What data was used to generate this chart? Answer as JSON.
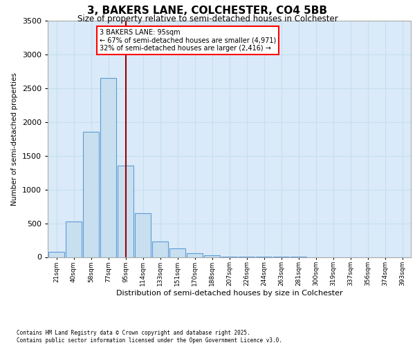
{
  "title": "3, BAKERS LANE, COLCHESTER, CO4 5BB",
  "subtitle": "Size of property relative to semi-detached houses in Colchester",
  "xlabel": "Distribution of semi-detached houses by size in Colchester",
  "ylabel": "Number of semi-detached properties",
  "bar_labels": [
    "21sqm",
    "40sqm",
    "58sqm",
    "77sqm",
    "95sqm",
    "114sqm",
    "133sqm",
    "151sqm",
    "170sqm",
    "188sqm",
    "207sqm",
    "226sqm",
    "244sqm",
    "263sqm",
    "281sqm",
    "300sqm",
    "319sqm",
    "337sqm",
    "356sqm",
    "374sqm",
    "393sqm"
  ],
  "bar_values": [
    75,
    530,
    1850,
    2650,
    1350,
    650,
    230,
    130,
    60,
    30,
    10,
    5,
    3,
    2,
    1,
    0,
    0,
    0,
    0,
    0,
    0
  ],
  "bar_color": "#c8dff0",
  "bar_edge_color": "#5b9bd5",
  "highlight_line_index": 4,
  "annotation_line1": "3 BAKERS LANE: 95sqm",
  "annotation_line2": "← 67% of semi-detached houses are smaller (4,971)",
  "annotation_line3": "32% of semi-detached houses are larger (2,416) →",
  "ylim": [
    0,
    3500
  ],
  "yticks": [
    0,
    500,
    1000,
    1500,
    2000,
    2500,
    3000,
    3500
  ],
  "grid_color": "#c5dff0",
  "background_color": "#daeaf8",
  "footer1": "Contains HM Land Registry data © Crown copyright and database right 2025.",
  "footer2": "Contains public sector information licensed under the Open Government Licence v3.0."
}
